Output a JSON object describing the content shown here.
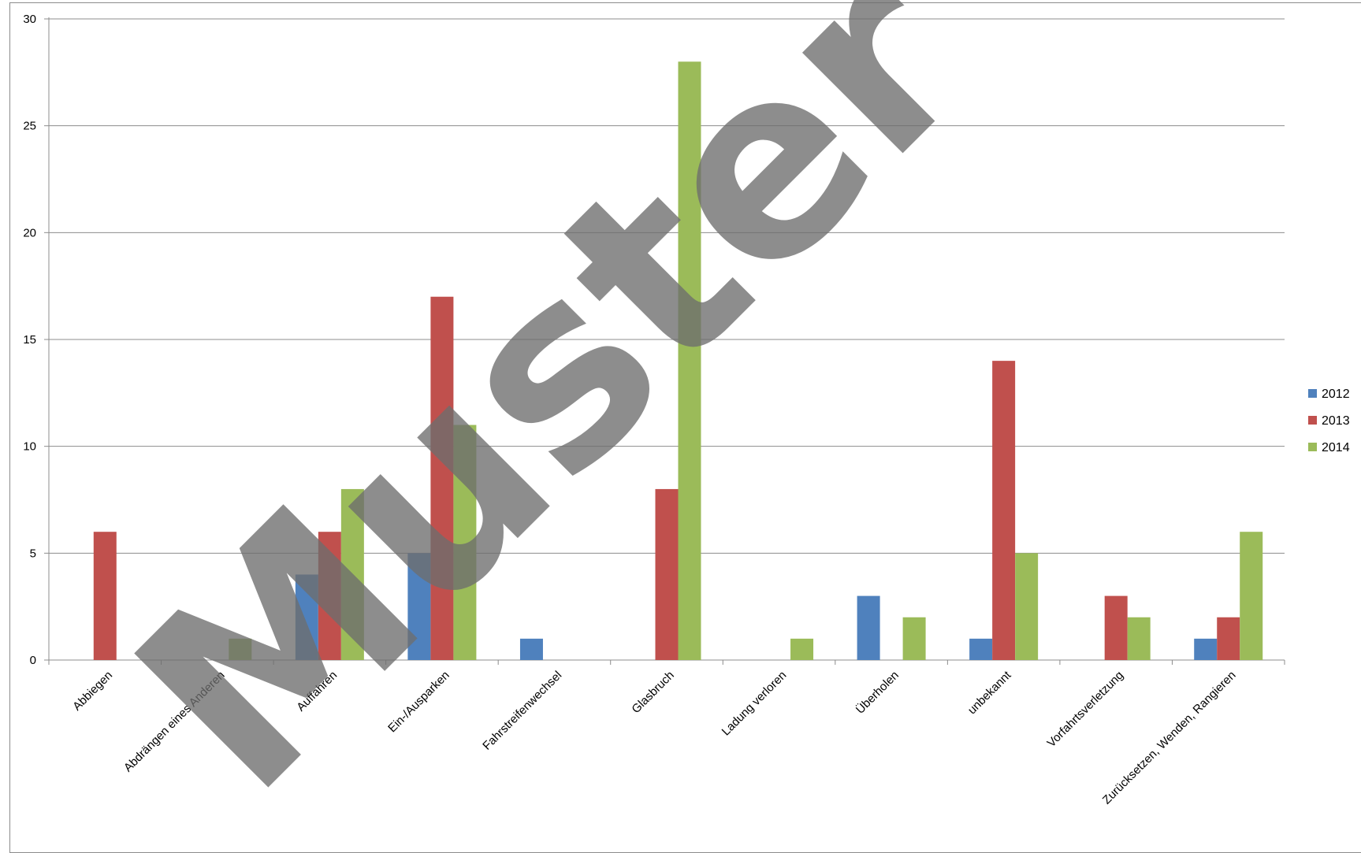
{
  "chart_data": {
    "type": "bar",
    "title": "",
    "xlabel": "",
    "ylabel": "",
    "ylim": [
      0,
      30
    ],
    "yticks": [
      0,
      5,
      10,
      15,
      20,
      25,
      30
    ],
    "grid": true,
    "legend_position": "right",
    "categories": [
      "Abbiegen",
      "Abdrängen eines Anderen",
      "Auffahren",
      "Ein-/Ausparken",
      "Fahrstreifenwechsel",
      "Glasbruch",
      "Ladung verloren",
      "Überholen",
      "unbekannt",
      "Vorfahrtsverletzung",
      "Zurücksetzen, Wenden, Rangieren"
    ],
    "series": [
      {
        "name": "2012",
        "color": "#4f81bd",
        "values": [
          0,
          0,
          4,
          5,
          1,
          0,
          0,
          3,
          1,
          0,
          1
        ]
      },
      {
        "name": "2013",
        "color": "#c0504d",
        "values": [
          6,
          0,
          6,
          17,
          0,
          8,
          0,
          0,
          14,
          3,
          2
        ]
      },
      {
        "name": "2014",
        "color": "#9bbb59",
        "values": [
          0,
          1,
          8,
          11,
          0,
          28,
          1,
          2,
          5,
          2,
          6
        ]
      }
    ]
  },
  "watermark": {
    "text": "Muster"
  }
}
